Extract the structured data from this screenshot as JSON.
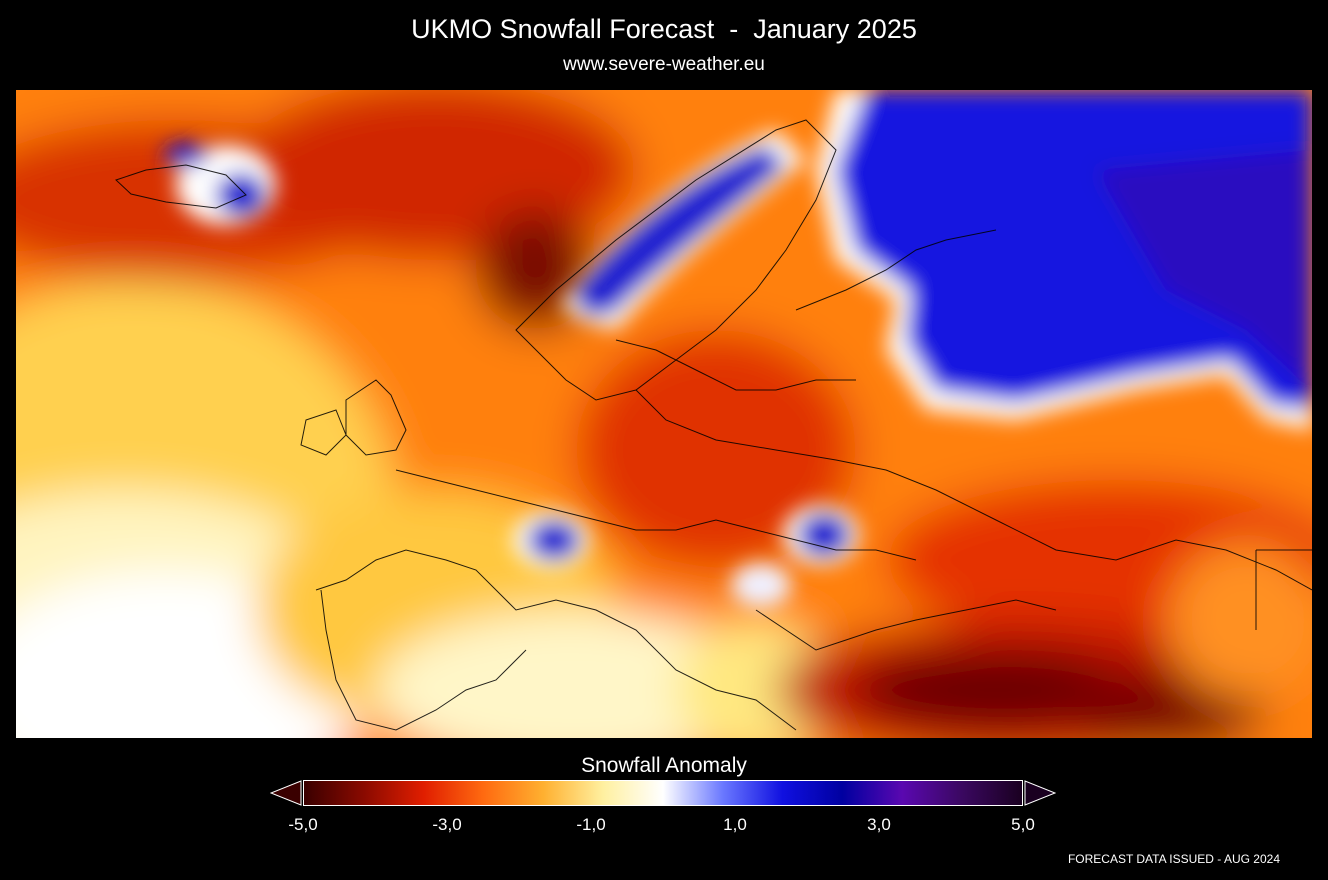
{
  "header": {
    "title": "UKMO Snowfall Forecast  -  January 2025",
    "subtitle": "www.severe-weather.eu"
  },
  "map": {
    "region": "Europe",
    "description_colors": {
      "strong_deficit": "#4a0000",
      "deficit": "#d42000",
      "mild_deficit": "#ff8a10",
      "neutral": "#ffffff",
      "surplus": "#1a1ae0",
      "strong_surplus": "#6a0aa0"
    }
  },
  "legend": {
    "title": "Snowfall Anomaly",
    "min": -5.0,
    "max": 5.0,
    "tick_labels": [
      "-5,0",
      "-3,0",
      "-1,0",
      "1,0",
      "3,0",
      "5,0"
    ],
    "colorscale": [
      "#3a0000",
      "#8a0a00",
      "#e01e00",
      "#ff6a10",
      "#ffb030",
      "#fff0a0",
      "#ffffff",
      "#6a78ff",
      "#1010e0",
      "#0000a0",
      "#5a08b0",
      "#3a0860",
      "#1a0020"
    ]
  },
  "footer": {
    "note": "FORECAST DATA ISSUED - AUG 2024"
  }
}
